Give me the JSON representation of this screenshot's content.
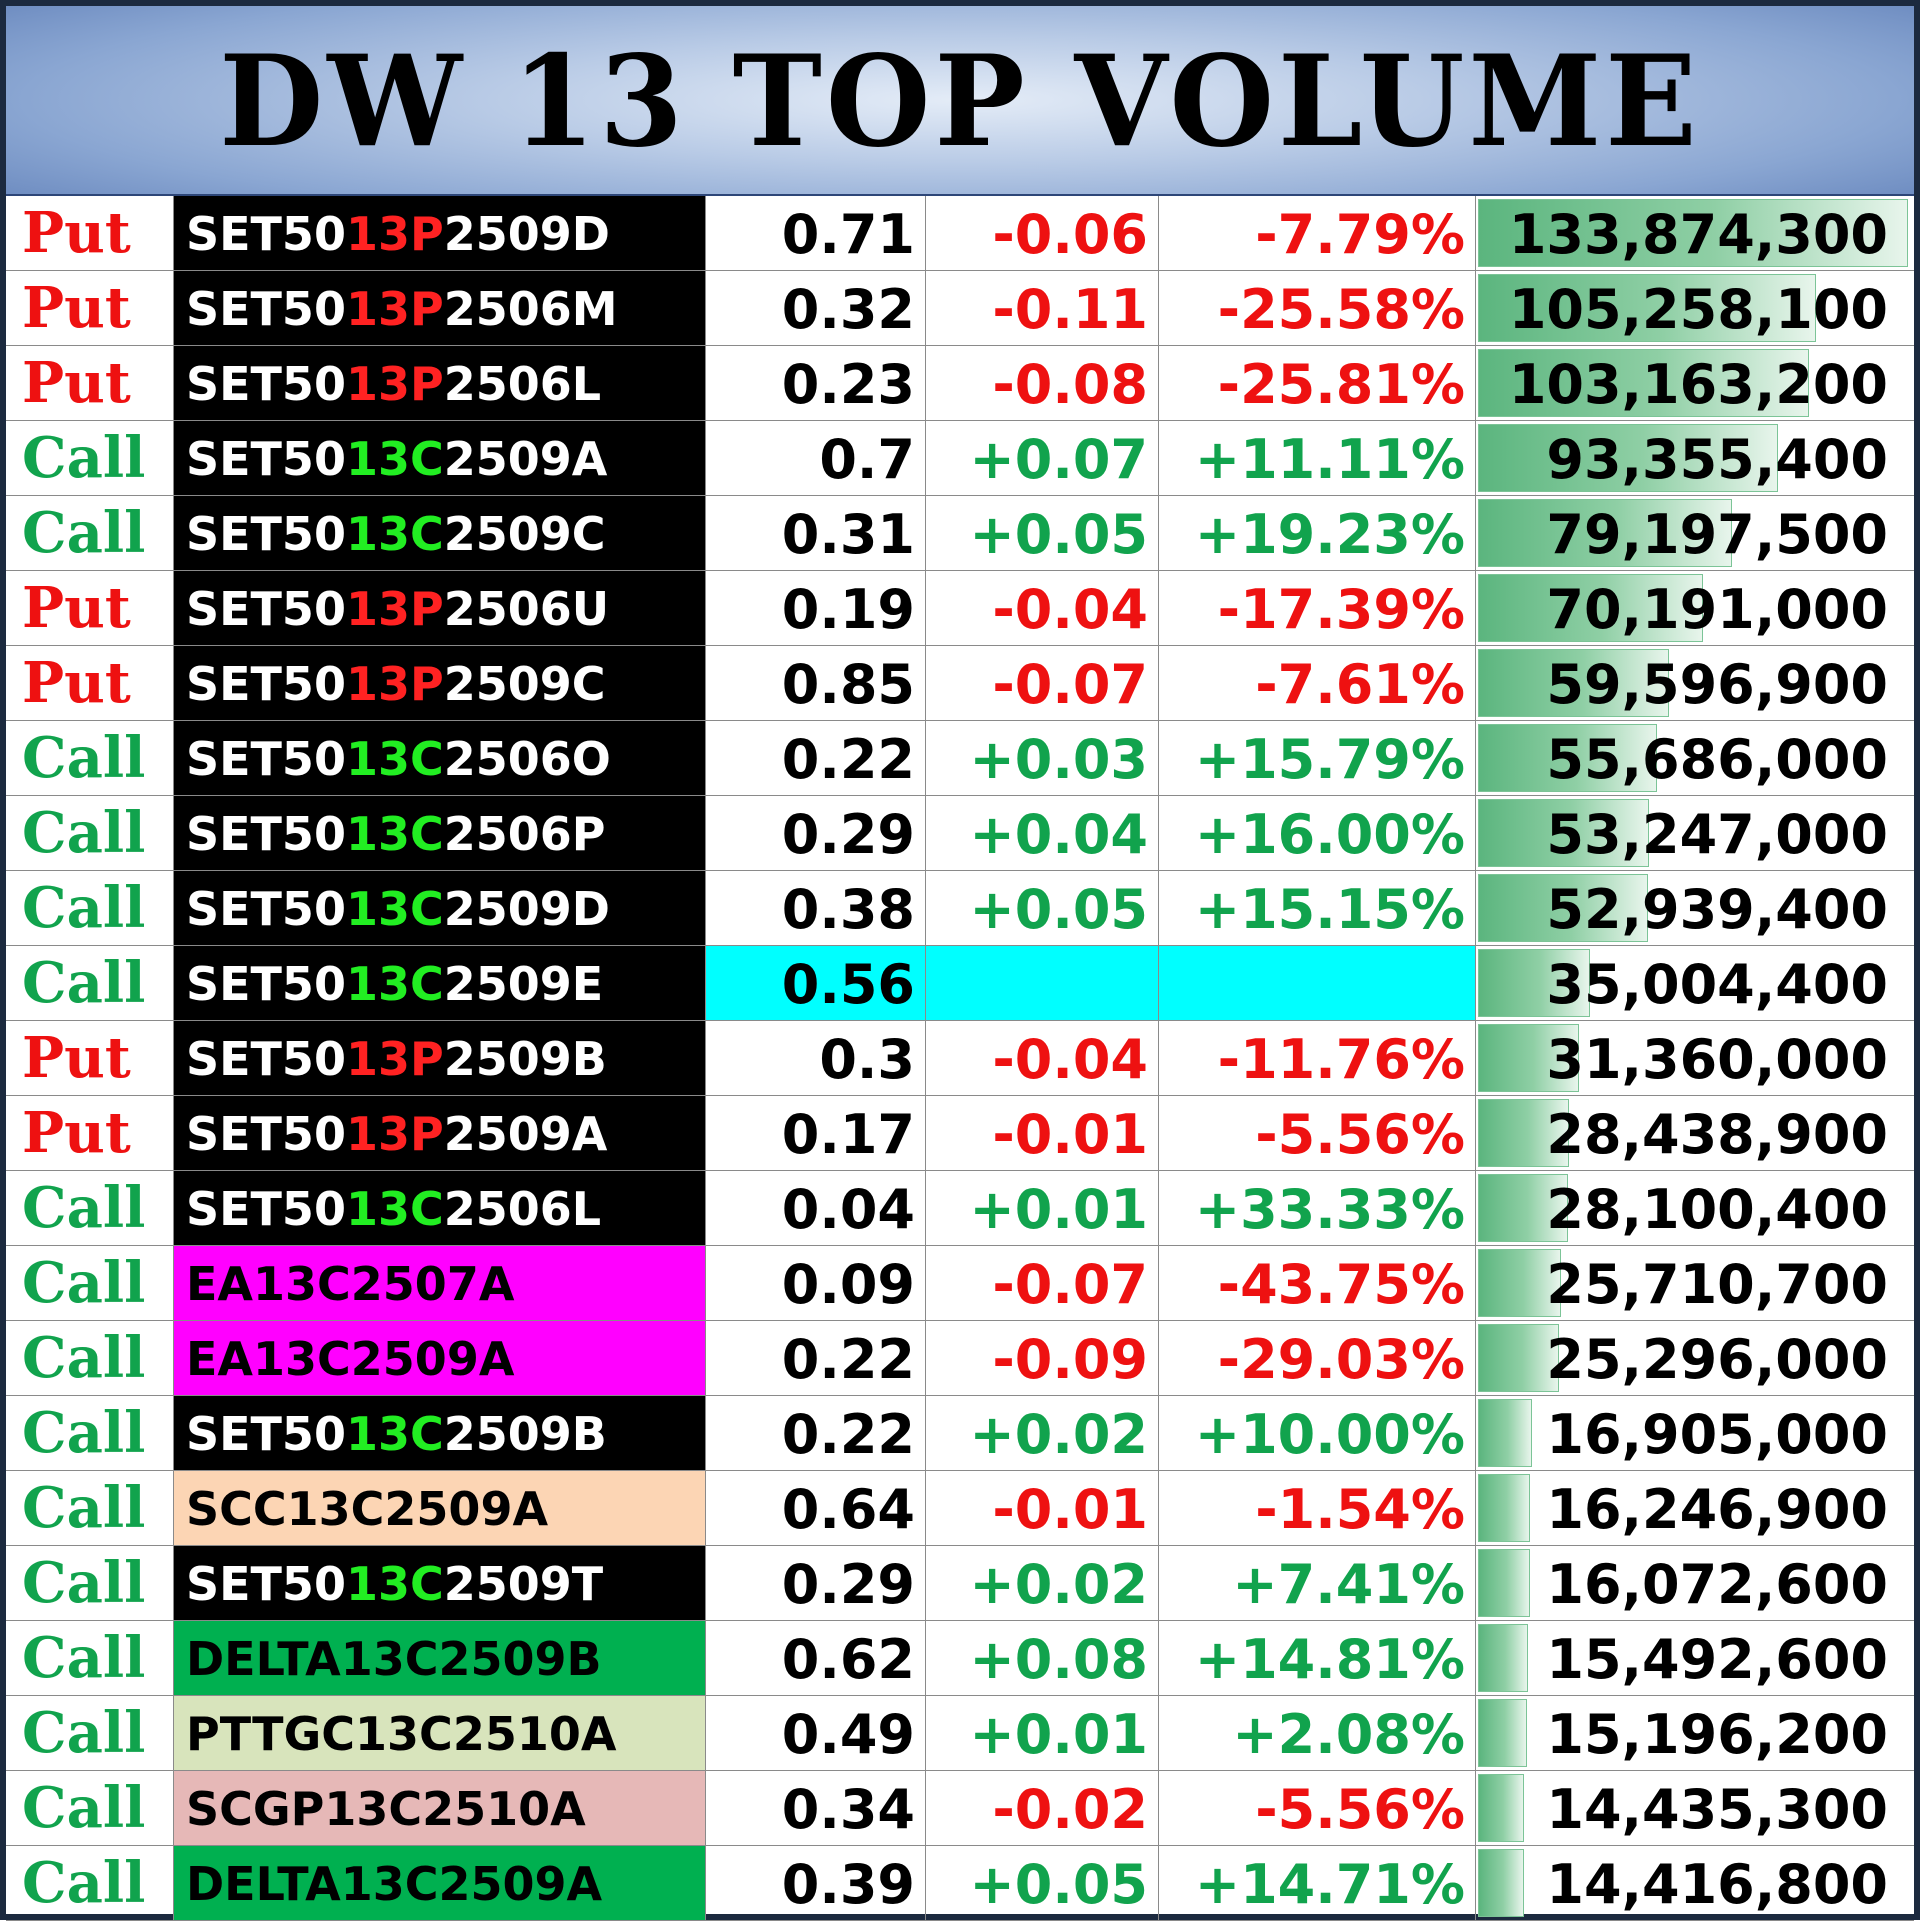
{
  "title": "DW 13 TOP VOLUME",
  "colors": {
    "put": "#ee1111",
    "call": "#11a34d",
    "highlight_no_change": "#00ffff",
    "volume_bar": "#5bb57e"
  },
  "columns": [
    "type",
    "symbol",
    "last",
    "change",
    "percent_change",
    "volume"
  ],
  "max_volume": 133874300,
  "rows": [
    {
      "type": "Put",
      "sym_pre": "SET50",
      "sym_mid": "13P",
      "sym_post": "2509D",
      "symbol_full": "SET5013P2509D",
      "sym_bg": "#000000",
      "sym_fg": "#ffffff",
      "last": "0.71",
      "change": "-0.06",
      "percent": "-7.79%",
      "volume_text": "133,874,300",
      "volume": 133874300
    },
    {
      "type": "Put",
      "sym_pre": "SET50",
      "sym_mid": "13P",
      "sym_post": "2506M",
      "symbol_full": "SET5013P2506M",
      "sym_bg": "#000000",
      "sym_fg": "#ffffff",
      "last": "0.32",
      "change": "-0.11",
      "percent": "-25.58%",
      "volume_text": "105,258,100",
      "volume": 105258100
    },
    {
      "type": "Put",
      "sym_pre": "SET50",
      "sym_mid": "13P",
      "sym_post": "2506L",
      "symbol_full": "SET5013P2506L",
      "sym_bg": "#000000",
      "sym_fg": "#ffffff",
      "last": "0.23",
      "change": "-0.08",
      "percent": "-25.81%",
      "volume_text": "103,163,200",
      "volume": 103163200
    },
    {
      "type": "Call",
      "sym_pre": "SET50",
      "sym_mid": "13C",
      "sym_post": "2509A",
      "symbol_full": "SET5013C2509A",
      "sym_bg": "#000000",
      "sym_fg": "#ffffff",
      "last": "0.7",
      "change": "+0.07",
      "percent": "+11.11%",
      "volume_text": "93,355,400",
      "volume": 93355400
    },
    {
      "type": "Call",
      "sym_pre": "SET50",
      "sym_mid": "13C",
      "sym_post": "2509C",
      "symbol_full": "SET5013C2509C",
      "sym_bg": "#000000",
      "sym_fg": "#ffffff",
      "last": "0.31",
      "change": "+0.05",
      "percent": "+19.23%",
      "volume_text": "79,197,500",
      "volume": 79197500
    },
    {
      "type": "Put",
      "sym_pre": "SET50",
      "sym_mid": "13P",
      "sym_post": "2506U",
      "symbol_full": "SET5013P2506U",
      "sym_bg": "#000000",
      "sym_fg": "#ffffff",
      "last": "0.19",
      "change": "-0.04",
      "percent": "-17.39%",
      "volume_text": "70,191,000",
      "volume": 70191000
    },
    {
      "type": "Put",
      "sym_pre": "SET50",
      "sym_mid": "13P",
      "sym_post": "2509C",
      "symbol_full": "SET5013P2509C",
      "sym_bg": "#000000",
      "sym_fg": "#ffffff",
      "last": "0.85",
      "change": "-0.07",
      "percent": "-7.61%",
      "volume_text": "59,596,900",
      "volume": 59596900
    },
    {
      "type": "Call",
      "sym_pre": "SET50",
      "sym_mid": "13C",
      "sym_post": "2506O",
      "symbol_full": "SET5013C2506O",
      "sym_bg": "#000000",
      "sym_fg": "#ffffff",
      "last": "0.22",
      "change": "+0.03",
      "percent": "+15.79%",
      "volume_text": "55,686,000",
      "volume": 55686000
    },
    {
      "type": "Call",
      "sym_pre": "SET50",
      "sym_mid": "13C",
      "sym_post": "2506P",
      "symbol_full": "SET5013C2506P",
      "sym_bg": "#000000",
      "sym_fg": "#ffffff",
      "last": "0.29",
      "change": "+0.04",
      "percent": "+16.00%",
      "volume_text": "53,247,000",
      "volume": 53247000
    },
    {
      "type": "Call",
      "sym_pre": "SET50",
      "sym_mid": "13C",
      "sym_post": "2509D",
      "symbol_full": "SET5013C2509D",
      "sym_bg": "#000000",
      "sym_fg": "#ffffff",
      "last": "0.38",
      "change": "+0.05",
      "percent": "+15.15%",
      "volume_text": "52,939,400",
      "volume": 52939400
    },
    {
      "type": "Call",
      "sym_pre": "SET50",
      "sym_mid": "13C",
      "sym_post": "2509E",
      "symbol_full": "SET5013C2509E",
      "sym_bg": "#000000",
      "sym_fg": "#ffffff",
      "last": "0.56",
      "change": "",
      "percent": "",
      "volume_text": "35,004,400",
      "volume": 35004400,
      "highlight": true
    },
    {
      "type": "Put",
      "sym_pre": "SET50",
      "sym_mid": "13P",
      "sym_post": "2509B",
      "symbol_full": "SET5013P2509B",
      "sym_bg": "#000000",
      "sym_fg": "#ffffff",
      "last": "0.3",
      "change": "-0.04",
      "percent": "-11.76%",
      "volume_text": "31,360,000",
      "volume": 31360000
    },
    {
      "type": "Put",
      "sym_pre": "SET50",
      "sym_mid": "13P",
      "sym_post": "2509A",
      "symbol_full": "SET5013P2509A",
      "sym_bg": "#000000",
      "sym_fg": "#ffffff",
      "last": "0.17",
      "change": "-0.01",
      "percent": "-5.56%",
      "volume_text": "28,438,900",
      "volume": 28438900
    },
    {
      "type": "Call",
      "sym_pre": "SET50",
      "sym_mid": "13C",
      "sym_post": "2506L",
      "symbol_full": "SET5013C2506L",
      "sym_bg": "#000000",
      "sym_fg": "#ffffff",
      "last": "0.04",
      "change": "+0.01",
      "percent": "+33.33%",
      "volume_text": "28,100,400",
      "volume": 28100400
    },
    {
      "type": "Call",
      "sym_pre": "",
      "sym_mid": "",
      "sym_post": "",
      "symbol_full": "EA13C2507A",
      "sym_bg": "#ff00ff",
      "sym_fg": "#000000",
      "last": "0.09",
      "change": "-0.07",
      "percent": "-43.75%",
      "volume_text": "25,710,700",
      "volume": 25710700
    },
    {
      "type": "Call",
      "sym_pre": "",
      "sym_mid": "",
      "sym_post": "",
      "symbol_full": "EA13C2509A",
      "sym_bg": "#ff00ff",
      "sym_fg": "#000000",
      "last": "0.22",
      "change": "-0.09",
      "percent": "-29.03%",
      "volume_text": "25,296,000",
      "volume": 25296000
    },
    {
      "type": "Call",
      "sym_pre": "SET50",
      "sym_mid": "13C",
      "sym_post": "2509B",
      "symbol_full": "SET5013C2509B",
      "sym_bg": "#000000",
      "sym_fg": "#ffffff",
      "last": "0.22",
      "change": "+0.02",
      "percent": "+10.00%",
      "volume_text": "16,905,000",
      "volume": 16905000
    },
    {
      "type": "Call",
      "sym_pre": "",
      "sym_mid": "",
      "sym_post": "",
      "symbol_full": "SCC13C2509A",
      "sym_bg": "#fcd5b4",
      "sym_fg": "#000000",
      "last": "0.64",
      "change": "-0.01",
      "percent": "-1.54%",
      "volume_text": "16,246,900",
      "volume": 16246900
    },
    {
      "type": "Call",
      "sym_pre": "SET50",
      "sym_mid": "13C",
      "sym_post": "2509T",
      "symbol_full": "SET5013C2509T",
      "sym_bg": "#000000",
      "sym_fg": "#ffffff",
      "last": "0.29",
      "change": "+0.02",
      "percent": "+7.41%",
      "volume_text": "16,072,600",
      "volume": 16072600
    },
    {
      "type": "Call",
      "sym_pre": "",
      "sym_mid": "",
      "sym_post": "",
      "symbol_full": "DELTA13C2509B",
      "sym_bg": "#00b050",
      "sym_fg": "#000000",
      "last": "0.62",
      "change": "+0.08",
      "percent": "+14.81%",
      "volume_text": "15,492,600",
      "volume": 15492600
    },
    {
      "type": "Call",
      "sym_pre": "",
      "sym_mid": "",
      "sym_post": "",
      "symbol_full": "PTTGC13C2510A",
      "sym_bg": "#d8e4bc",
      "sym_fg": "#000000",
      "last": "0.49",
      "change": "+0.01",
      "percent": "+2.08%",
      "volume_text": "15,196,200",
      "volume": 15196200
    },
    {
      "type": "Call",
      "sym_pre": "",
      "sym_mid": "",
      "sym_post": "",
      "symbol_full": "SCGP13C2510A",
      "sym_bg": "#e6b8b7",
      "sym_fg": "#000000",
      "last": "0.34",
      "change": "-0.02",
      "percent": "-5.56%",
      "volume_text": "14,435,300",
      "volume": 14435300
    },
    {
      "type": "Call",
      "sym_pre": "",
      "sym_mid": "",
      "sym_post": "",
      "symbol_full": "DELTA13C2509A",
      "sym_bg": "#00b050",
      "sym_fg": "#000000",
      "last": "0.39",
      "change": "+0.05",
      "percent": "+14.71%",
      "volume_text": "14,416,800",
      "volume": 14416800
    }
  ]
}
